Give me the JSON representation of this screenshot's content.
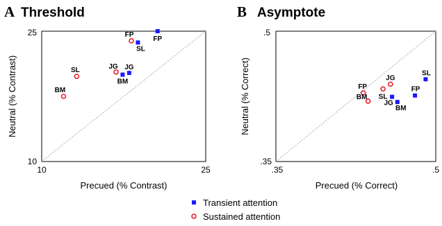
{
  "chart_data": [
    {
      "type": "scatter",
      "panel_letter": "A",
      "title": "Threshold",
      "xlabel": "Precued (% Contrast)",
      "ylabel": "Neutral (% Contrast)",
      "xlim": [
        10,
        25
      ],
      "ylim": [
        10,
        25
      ],
      "xticks": [
        "10",
        "25"
      ],
      "yticks": [
        "10",
        "25"
      ],
      "identity_line": true,
      "grid": false,
      "series": [
        {
          "name": "Transient attention",
          "marker": "square",
          "color": "#1a1aff",
          "points": [
            {
              "label": "FP",
              "x": 20.6,
              "y": 25.0
            },
            {
              "label": "SL",
              "x": 18.8,
              "y": 23.7
            },
            {
              "label": "JG",
              "x": 18.0,
              "y": 20.2
            },
            {
              "label": "BM",
              "x": 17.4,
              "y": 20.0
            }
          ]
        },
        {
          "name": "Sustained attention",
          "marker": "circle",
          "color": "#e8202a",
          "points": [
            {
              "label": "FP",
              "x": 18.2,
              "y": 23.9
            },
            {
              "label": "JG",
              "x": 16.8,
              "y": 20.3
            },
            {
              "label": "SL",
              "x": 13.2,
              "y": 19.8
            },
            {
              "label": "BM",
              "x": 12.0,
              "y": 17.5
            }
          ]
        }
      ]
    },
    {
      "type": "scatter",
      "panel_letter": "B",
      "title": "Asymptote",
      "xlabel": "Precued (% Correct)",
      "ylabel": "Neutral (% Correct)",
      "xlim": [
        0.35,
        0.5
      ],
      "ylim": [
        0.35,
        0.5
      ],
      "xticks": [
        ".35",
        ".5"
      ],
      "yticks": [
        ".35",
        ".5"
      ],
      "identity_line": true,
      "grid": false,
      "series": [
        {
          "name": "Transient attention",
          "marker": "square",
          "color": "#1a1aff",
          "points": [
            {
              "label": "SL",
              "x": 0.4905,
              "y": 0.4447
            },
            {
              "label": "FP",
              "x": 0.4805,
              "y": 0.426
            },
            {
              "label": "JG",
              "x": 0.459,
              "y": 0.4245
            },
            {
              "label": "BM",
              "x": 0.464,
              "y": 0.4185
            }
          ]
        },
        {
          "name": "Sustained attention",
          "marker": "circle",
          "color": "#e8202a",
          "points": [
            {
              "label": "JG",
              "x": 0.4575,
              "y": 0.439
            },
            {
              "label": "SL",
              "x": 0.4505,
              "y": 0.4335
            },
            {
              "label": "FP",
              "x": 0.432,
              "y": 0.429
            },
            {
              "label": "BM",
              "x": 0.4365,
              "y": 0.4195
            }
          ]
        }
      ]
    }
  ],
  "legend": {
    "items": [
      {
        "label": "Transient attention",
        "marker": "square",
        "color": "#1a1aff"
      },
      {
        "label": "Sustained attention",
        "marker": "circle",
        "color": "#e8202a"
      }
    ]
  }
}
